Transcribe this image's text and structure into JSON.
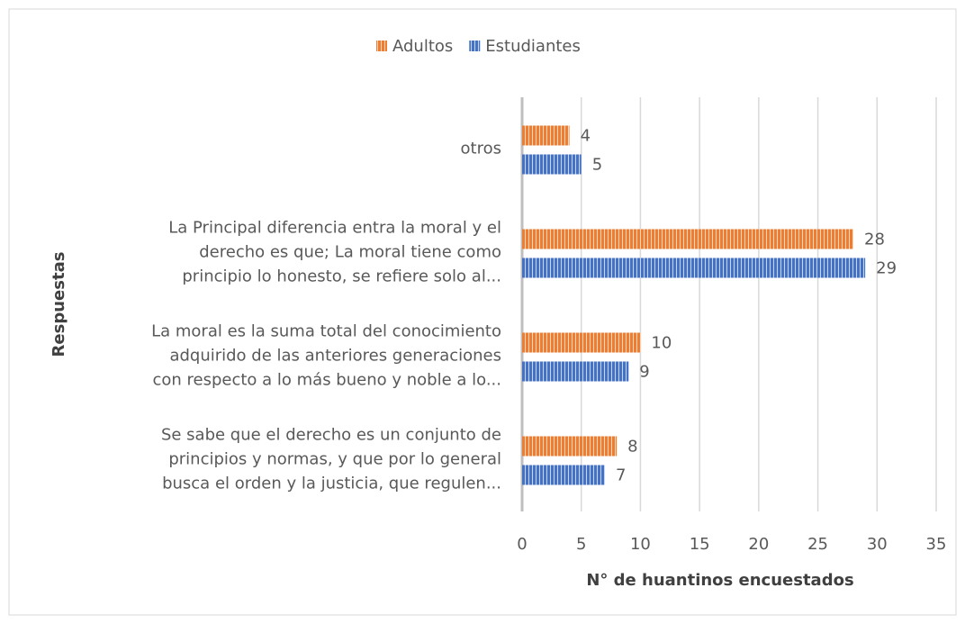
{
  "chart_data": {
    "type": "bar",
    "orientation": "horizontal",
    "categories": [
      "otros",
      "La Principal diferencia entra la moral y el\nderecho es que; La moral tiene como\nprincipio lo honesto, se refiere solo al...",
      "La moral es la suma total del conocimiento\nadquirido de las anteriores generaciones\ncon respecto a lo más bueno y noble a lo...",
      "Se sabe que el derecho es un conjunto de\nprincipios y normas, y que por lo general\nbusca el orden y la justicia, que regulen..."
    ],
    "series": [
      {
        "name": "Adultos",
        "color": "#ed7d31",
        "values": [
          4,
          28,
          10,
          8
        ]
      },
      {
        "name": "Estudiantes",
        "color": "#4472c4",
        "values": [
          5,
          29,
          9,
          7
        ]
      }
    ],
    "xlabel": "N°  de huantinos encuestados",
    "ylabel": "Respuestas",
    "xlim": [
      0,
      35
    ],
    "xticks": [
      0,
      5,
      10,
      15,
      20,
      25,
      30,
      35
    ],
    "grid": true,
    "legend": "top"
  }
}
